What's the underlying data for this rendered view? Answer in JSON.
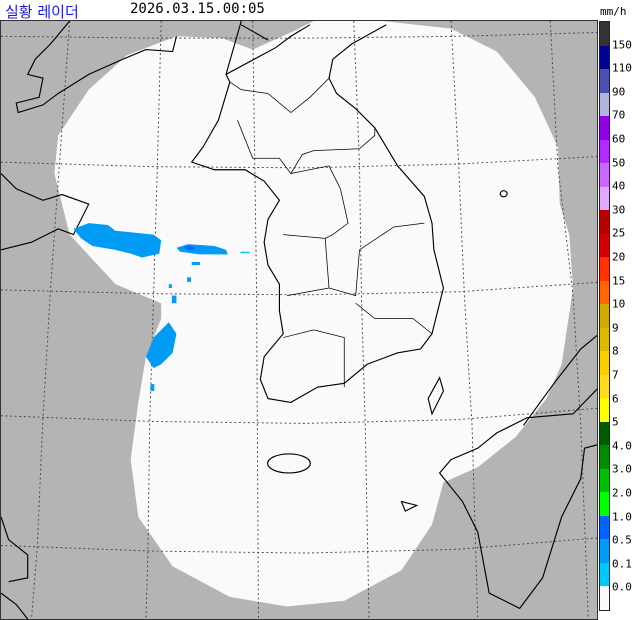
{
  "header": {
    "title": "실황 레이더",
    "timestamp": "2026.03.15.00:05",
    "unit": "mm/h",
    "title_color": "#1a1ae6"
  },
  "legend": {
    "labels": [
      "150",
      "110",
      "90",
      "70",
      "60",
      "50",
      "40",
      "30",
      "25",
      "20",
      "15",
      "10",
      "9",
      "8",
      "7",
      "6",
      "5",
      "4.0",
      "3.0",
      "2.0",
      "1.0",
      "0.5",
      "0.1",
      "0.0"
    ],
    "colors": [
      "#333333",
      "#000390",
      "#4c4eb1",
      "#b3b4de",
      "#9300e4",
      "#b329ff",
      "#c969ff",
      "#e0a9ff",
      "#b40000",
      "#d20000",
      "#ff3200",
      "#ff6600",
      "#ccaa00",
      "#e0b900",
      "#f9cd00",
      "#ffdc1f",
      "#ffff00",
      "#005a00",
      "#008c00",
      "#00be00",
      "#00ff00",
      "#0063ff",
      "#009bf5",
      "#00c8ff",
      "#fafafa"
    ]
  },
  "map": {
    "background_color": "#b4b4b4",
    "coverage_color": "#fafafa",
    "coastline_color": "#000000",
    "precip_colors": {
      "light": "#009bf5",
      "moderate": "#0063ff",
      "trace": "#00c8ff"
    }
  }
}
